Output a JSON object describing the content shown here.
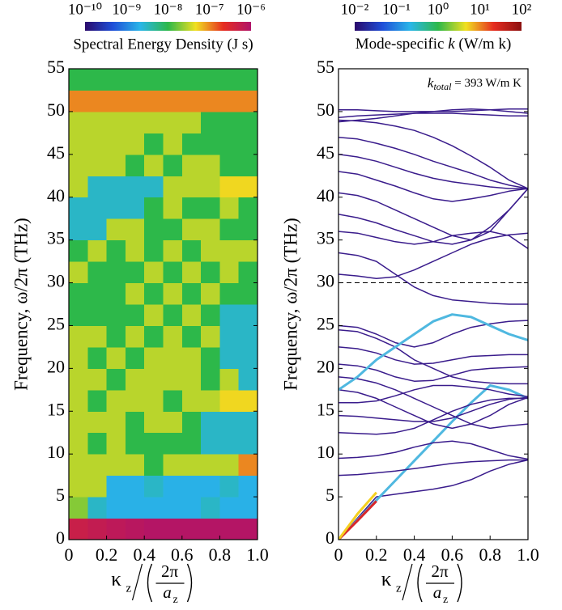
{
  "chart_data": [
    {
      "type": "heatmap",
      "ylabel": "Frequency, ω/2π (THz)",
      "xlabel": {
        "kappa": "κ",
        "kappa_sub": "z",
        "num": "2π",
        "den": "a",
        "den_sub": "z"
      },
      "colorbar": {
        "label": "Spectral Energy Density (J s)",
        "log": true,
        "clim": [
          1e-10,
          1e-06
        ],
        "ticks": [
          {
            "value": 1e-10,
            "label": "10⁻¹⁰"
          },
          {
            "value": 1e-09,
            "label": "10⁻⁹"
          },
          {
            "value": 1e-08,
            "label": "10⁻⁸"
          },
          {
            "value": 1e-07,
            "label": "10⁻⁷"
          },
          {
            "value": 1e-06,
            "label": "10⁻⁶"
          }
        ],
        "colors": [
          "#2a0a6b",
          "#1f4fd8",
          "#29b6e8",
          "#2db84a",
          "#f0e020",
          "#e62d20",
          "#b0136a"
        ]
      },
      "xlim": [
        0,
        1
      ],
      "ylim": [
        0,
        55
      ],
      "xticks": [
        0,
        0.2,
        0.4,
        0.6,
        0.8,
        {
          "value": 1,
          "label": "1.0"
        }
      ],
      "yticks": [
        0,
        5,
        10,
        15,
        20,
        25,
        30,
        35,
        40,
        45,
        50,
        55
      ],
      "xbins": [
        0,
        0.1,
        0.2,
        0.3,
        0.4,
        0.5,
        0.6,
        0.7,
        0.8,
        0.9,
        1
      ],
      "ybins": [
        0,
        2.5,
        5,
        7.5,
        10,
        12.5,
        15,
        17.5,
        20,
        22.5,
        25,
        27.5,
        30,
        32.5,
        35,
        37.5,
        40,
        42.5,
        45,
        47.5,
        50,
        52.5,
        55
      ],
      "values": [
        [
          5e-07,
          6e-07,
          7e-07,
          8e-07,
          9e-07,
          9e-07,
          9e-07,
          9e-07,
          9e-07,
          9e-07
        ],
        [
          2e-08,
          3e-09,
          2e-09,
          2e-09,
          2e-09,
          2e-09,
          2e-09,
          3e-09,
          2e-09,
          2e-09
        ],
        [
          3e-08,
          3e-08,
          2e-09,
          2e-09,
          3e-09,
          2e-09,
          2e-09,
          2e-09,
          3e-09,
          2e-09
        ],
        [
          3e-08,
          3e-08,
          3e-08,
          3e-08,
          1e-08,
          3e-08,
          3e-08,
          3e-08,
          3e-08,
          1e-07
        ],
        [
          3e-08,
          1e-08,
          3e-08,
          1e-08,
          1e-08,
          1e-08,
          1e-08,
          3e-09,
          3e-09,
          3e-09
        ],
        [
          3e-08,
          3e-08,
          3e-08,
          1e-08,
          3e-08,
          3e-08,
          1e-08,
          3e-09,
          3e-09,
          3e-09
        ],
        [
          3e-08,
          1e-08,
          3e-08,
          3e-08,
          3e-08,
          1e-08,
          3e-08,
          3e-08,
          5e-08,
          5e-08
        ],
        [
          3e-08,
          3e-08,
          1e-08,
          3e-08,
          3e-08,
          3e-08,
          3e-08,
          1e-08,
          3e-08,
          3e-09
        ],
        [
          3e-08,
          1e-08,
          3e-08,
          1e-08,
          3e-08,
          3e-08,
          3e-08,
          1e-08,
          3e-09,
          3e-09
        ],
        [
          3e-08,
          3e-08,
          1e-08,
          3e-08,
          1e-08,
          3e-08,
          1e-08,
          3e-08,
          3e-09,
          3e-09
        ],
        [
          1e-08,
          1e-08,
          1e-08,
          1e-08,
          3e-08,
          1e-08,
          3e-08,
          1e-08,
          3e-09,
          3e-09
        ],
        [
          1e-08,
          1e-08,
          1e-08,
          3e-08,
          1e-08,
          3e-08,
          1e-08,
          3e-08,
          1e-08,
          1e-08
        ],
        [
          3e-08,
          1e-08,
          1e-08,
          1e-08,
          3e-08,
          1e-08,
          3e-08,
          1e-08,
          3e-08,
          1e-08
        ],
        [
          1e-08,
          3e-08,
          1e-08,
          3e-08,
          1e-08,
          3e-08,
          1e-08,
          3e-08,
          3e-08,
          3e-08
        ],
        [
          3e-09,
          3e-09,
          3e-08,
          3e-08,
          1e-08,
          1e-08,
          3e-08,
          3e-08,
          1e-08,
          1e-08
        ],
        [
          3e-09,
          3e-09,
          3e-09,
          3e-09,
          1e-08,
          3e-08,
          1e-08,
          1e-08,
          3e-08,
          1e-08
        ],
        [
          3e-08,
          3e-09,
          3e-09,
          3e-09,
          3e-09,
          3e-08,
          3e-08,
          3e-08,
          5e-08,
          5e-08
        ],
        [
          3e-08,
          3e-08,
          3e-08,
          1e-08,
          3e-08,
          1e-08,
          3e-08,
          3e-08,
          1e-08,
          1e-08
        ],
        [
          3e-08,
          3e-08,
          3e-08,
          3e-08,
          1e-08,
          3e-08,
          1e-08,
          1e-08,
          1e-08,
          1e-08
        ],
        [
          3e-08,
          3e-08,
          3e-08,
          3e-08,
          3e-08,
          3e-08,
          3e-08,
          1e-08,
          1e-08,
          1e-08
        ],
        [
          1e-07,
          1e-07,
          1e-07,
          1e-07,
          1e-07,
          1e-07,
          1e-07,
          1e-07,
          1e-07,
          1e-07
        ],
        [
          1e-08,
          1e-08,
          1e-08,
          1e-08,
          1e-08,
          1e-08,
          1e-08,
          1e-08,
          1e-08,
          1e-08
        ]
      ]
    },
    {
      "type": "line",
      "ylabel": "Frequency, ω/2π (THz)",
      "xlabel": {
        "kappa": "κ",
        "kappa_sub": "z",
        "num": "2π",
        "den": "a",
        "den_sub": "z"
      },
      "colorbar": {
        "label": {
          "before": "Mode-specific ",
          "italic": "k",
          "after": " (W/m k)"
        },
        "log": true,
        "clim": [
          0.01,
          100
        ],
        "ticks": [
          {
            "value": 0.01,
            "label": "10⁻²"
          },
          {
            "value": 0.1,
            "label": "10⁻¹"
          },
          {
            "value": 1,
            "label": "10⁰"
          },
          {
            "value": 10,
            "label": "10¹"
          },
          {
            "value": 100,
            "label": "10²"
          }
        ],
        "colors": [
          "#2a0a6b",
          "#1f4fd8",
          "#29b6e8",
          "#2db84a",
          "#f0e020",
          "#e62d20",
          "#8b1010"
        ]
      },
      "annotation": {
        "symbol": "k",
        "sub": "total",
        "text": " = 393 W/m K"
      },
      "hline": 30,
      "xlim": [
        0,
        1
      ],
      "ylim": [
        0,
        55
      ],
      "xticks": [
        0,
        0.2,
        0.4,
        0.6,
        0.8,
        {
          "value": 1,
          "label": "1.0"
        }
      ],
      "yticks": [
        0,
        5,
        10,
        15,
        20,
        25,
        30,
        35,
        40,
        45,
        50,
        55
      ],
      "x": [
        0,
        0.1,
        0.2,
        0.3,
        0.4,
        0.5,
        0.6,
        0.7,
        0.8,
        0.9,
        1
      ],
      "series": [
        {
          "color": "#3a1c8c",
          "values": [
            0,
            2.5,
            5,
            5.3,
            5.6,
            5.9,
            6.3,
            7,
            8,
            8.8,
            9.3
          ]
        },
        {
          "color": "#4fb8e0",
          "values": [
            0,
            2.3,
            4.6,
            6.9,
            9.2,
            11.5,
            13.8,
            16,
            18,
            17.5,
            16.5
          ]
        },
        {
          "color": "#d8262a",
          "values": [
            0,
            2.2,
            4.5,
            null,
            null,
            null,
            null,
            null,
            null,
            null,
            null
          ]
        },
        {
          "color": "#f5d020",
          "values": [
            0,
            3,
            5.5,
            null,
            null,
            null,
            null,
            null,
            null,
            null,
            null
          ]
        },
        {
          "color": "#3a1c8c",
          "values": [
            7.5,
            7.6,
            7.8,
            8,
            8.3,
            8.6,
            8.9,
            9.1,
            9.2,
            9.3,
            9.3
          ]
        },
        {
          "color": "#3a1c8c",
          "values": [
            9.5,
            9.6,
            9.8,
            10.2,
            10.8,
            11.3,
            11.5,
            11.2,
            10.5,
            9.8,
            9.4
          ]
        },
        {
          "color": "#3a1c8c",
          "values": [
            12.5,
            12.4,
            12.3,
            12.5,
            13,
            14,
            15,
            15.8,
            16.3,
            16.5,
            16.5
          ]
        },
        {
          "color": "#3a1c8c",
          "values": [
            14.5,
            14.4,
            14.2,
            14,
            13.8,
            13.8,
            14.2,
            15,
            15.8,
            16.4,
            16.6
          ]
        },
        {
          "color": "#3a1c8c",
          "values": [
            16,
            16,
            16.2,
            16.8,
            17.5,
            18,
            18,
            17.8,
            17.5,
            17,
            16.7
          ]
        },
        {
          "color": "#3a1c8c",
          "values": [
            17.5,
            17.2,
            16.5,
            15.5,
            14.5,
            13.5,
            13,
            13.5,
            14.5,
            15.8,
            16.6
          ]
        },
        {
          "color": "#3a1c8c",
          "values": [
            19,
            18.8,
            18.3,
            17.5,
            16.5,
            15.5,
            14.5,
            13.5,
            13,
            13.3,
            13.5
          ]
        },
        {
          "color": "#3a1c8c",
          "values": [
            20.5,
            20.3,
            19.8,
            19,
            18.5,
            18.6,
            19.2,
            19.8,
            20,
            20.1,
            20.2
          ]
        },
        {
          "color": "#3a1c8c",
          "values": [
            22.5,
            22.3,
            21.8,
            21,
            20.5,
            20.6,
            21,
            21.4,
            21.5,
            21.6,
            21.6
          ]
        },
        {
          "color": "#3a1c8c",
          "values": [
            24.5,
            24.3,
            23.5,
            22.5,
            21,
            20,
            19,
            18.5,
            18.3,
            18.2,
            18.2
          ]
        },
        {
          "color": "#3a1c8c",
          "values": [
            25,
            24.8,
            24,
            23,
            22.5,
            23,
            24,
            24.8,
            25.2,
            25.5,
            25.6
          ]
        },
        {
          "color": "#4fb8e0",
          "values": [
            17.5,
            19,
            21,
            22.5,
            24,
            25.5,
            26.3,
            26,
            25,
            24,
            23.3
          ]
        },
        {
          "color": "#3a1c8c",
          "values": [
            31,
            30.8,
            30.5,
            30.7,
            31.5,
            32.5,
            33.5,
            34.5,
            35.2,
            35.6,
            35.8
          ]
        },
        {
          "color": "#3a1c8c",
          "values": [
            33.5,
            33.2,
            32.5,
            31,
            29.5,
            28.5,
            28,
            27.8,
            27.6,
            27.5,
            27.5
          ]
        },
        {
          "color": "#3a1c8c",
          "values": [
            36,
            35.8,
            35.3,
            34.8,
            34.5,
            34.8,
            35.5,
            35.8,
            36,
            35.5,
            34
          ]
        },
        {
          "color": "#3a1c8c",
          "values": [
            38,
            37.6,
            37,
            36.2,
            35.5,
            34.8,
            34.5,
            35,
            36.5,
            38.5,
            41
          ]
        },
        {
          "color": "#3a1c8c",
          "values": [
            40.5,
            40.2,
            39.5,
            38.5,
            37.5,
            36.5,
            35.5,
            35,
            36,
            38.5,
            41
          ]
        },
        {
          "color": "#3a1c8c",
          "values": [
            43,
            42.7,
            42,
            41.3,
            40.5,
            39.8,
            39.5,
            39.8,
            40.2,
            40.7,
            41
          ]
        },
        {
          "color": "#3a1c8c",
          "values": [
            45,
            44.7,
            44.2,
            43.5,
            42.8,
            42.2,
            41.8,
            41.5,
            41.2,
            41,
            41
          ]
        },
        {
          "color": "#3a1c8c",
          "values": [
            47,
            46.8,
            46.3,
            45.7,
            45,
            44.2,
            43.5,
            42.8,
            42,
            41.4,
            41
          ]
        },
        {
          "color": "#3a1c8c",
          "values": [
            49,
            48.9,
            48.7,
            48.3,
            47.8,
            47,
            46,
            44.8,
            43.5,
            42,
            41
          ]
        },
        {
          "color": "#3a1c8c",
          "values": [
            49.3,
            49.5,
            49.6,
            49.7,
            49.8,
            49.8,
            49.8,
            49.7,
            49.6,
            49.5,
            49.5
          ]
        },
        {
          "color": "#3a1c8c",
          "values": [
            50.2,
            50.2,
            50.1,
            50,
            50,
            50,
            50,
            50.1,
            50.2,
            50.3,
            50.3
          ]
        },
        {
          "color": "#3a1c8c",
          "values": [
            48.8,
            49,
            49.2,
            49.5,
            49.8,
            50,
            50.2,
            50.3,
            50.2,
            50,
            49.8
          ]
        }
      ]
    }
  ]
}
